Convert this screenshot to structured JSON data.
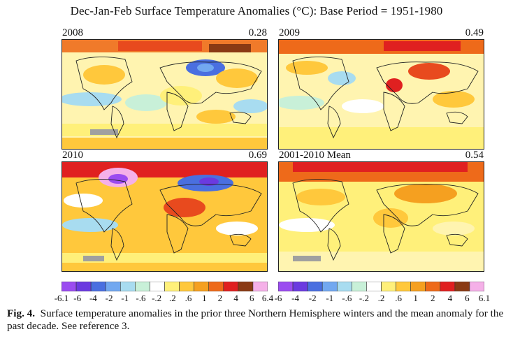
{
  "title": "Dec-Jan-Feb Surface Temperature Anomalies (°C): Base Period = 1951-1980",
  "panels": [
    {
      "label": "2008",
      "value": "0.28"
    },
    {
      "label": "2009",
      "value": "0.49"
    },
    {
      "label": "2010",
      "value": "0.69"
    },
    {
      "label": "2001-2010 Mean",
      "value": "0.54"
    }
  ],
  "scale_left": [
    "-6.1",
    "-6",
    "-4",
    "-2",
    "-1",
    "-.6",
    "-.2",
    ".2",
    ".6",
    "1",
    "2",
    "4",
    "6",
    "6.4"
  ],
  "scale_right": [
    "-6",
    "-4",
    "-2",
    "-1",
    "-.6",
    "-.2",
    ".2",
    ".6",
    "1",
    "2",
    "4",
    "6",
    "6.1"
  ],
  "scale_colors": [
    "#9b4cf0",
    "#6b3ae0",
    "#4a6fe0",
    "#72a8f0",
    "#a8dcf0",
    "#c8f0d8",
    "#ffffff",
    "#fff07a",
    "#ffc83c",
    "#f5a020",
    "#ee6a1a",
    "#e02020",
    "#8a3a14",
    "#f5b0e8"
  ],
  "caption": {
    "label": "Fig. 4.",
    "text": "Surface temperature anomalies in the prior three Northern Hemisphere winters and the mean anomaly for the past decade.  See reference 3."
  }
}
